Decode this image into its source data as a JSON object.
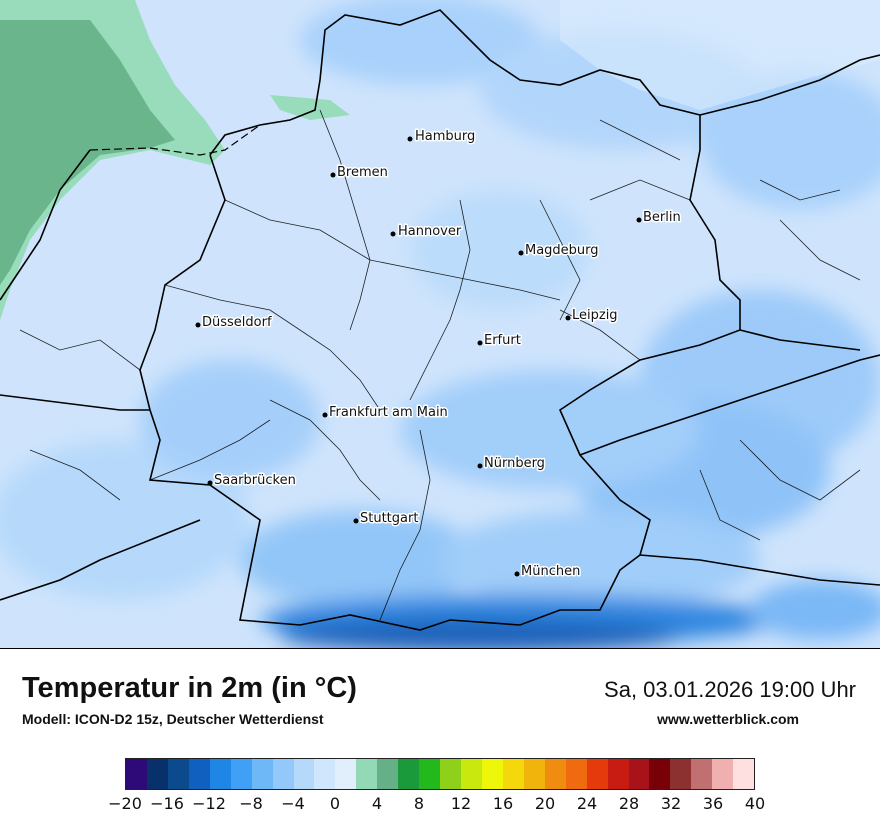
{
  "header": {
    "title": "Temperatur in 2m (in °C)",
    "subtitle": "Modell: ICON-D2 15z, Deutscher Wetterdienst",
    "datetime": "Sa, 03.01.2026 19:00 Uhr",
    "website": "www.wetterblick.com"
  },
  "cities": [
    {
      "name": "Hamburg"
    },
    {
      "name": "Bremen"
    },
    {
      "name": "Hannover"
    },
    {
      "name": "Berlin"
    },
    {
      "name": "Magdeburg"
    },
    {
      "name": "Düsseldorf"
    },
    {
      "name": "Leipzig"
    },
    {
      "name": "Erfurt"
    },
    {
      "name": "Frankfurt am Main"
    },
    {
      "name": "Nürnberg"
    },
    {
      "name": "Saarbrücken"
    },
    {
      "name": "Stuttgart"
    },
    {
      "name": "München"
    }
  ],
  "legend": {
    "colors": [
      "#2d0a78",
      "#08306b",
      "#0b4a8c",
      "#1060c0",
      "#1f86e6",
      "#3fa0f5",
      "#6fb8f8",
      "#93c8fa",
      "#b5d9fb",
      "#d0e6fc",
      "#e1effd",
      "#93d9b8",
      "#66b088",
      "#1a9a3a",
      "#23b81c",
      "#8fd11a",
      "#c8e80e",
      "#eef70a",
      "#f4d80c",
      "#f0b40c",
      "#f08c10",
      "#f06a10",
      "#e43a0c",
      "#c81c12",
      "#a8121a",
      "#7a0008",
      "#8c3030",
      "#c07070",
      "#f0b0b0",
      "#ffe0e0"
    ],
    "tick_labels": [
      "−20",
      "−16",
      "−12",
      "−8",
      "−4",
      "0",
      "4",
      "8",
      "12",
      "16",
      "20",
      "24",
      "28",
      "32",
      "36",
      "40"
    ]
  }
}
